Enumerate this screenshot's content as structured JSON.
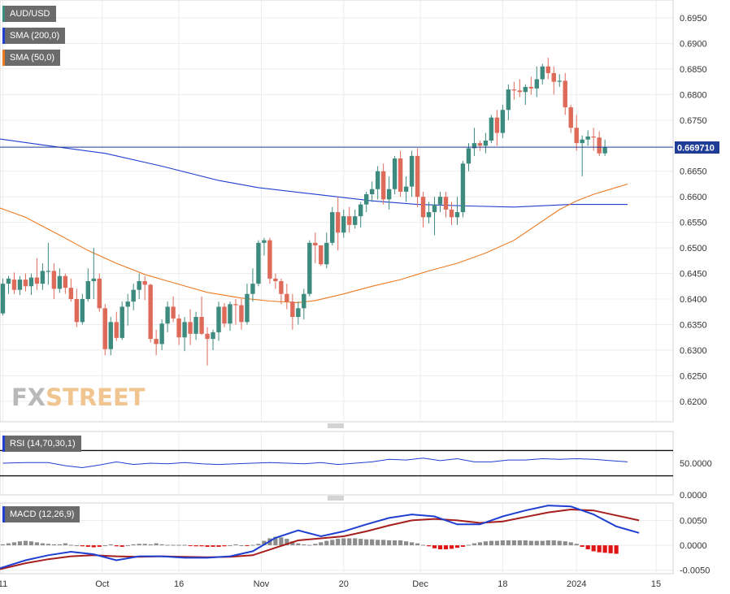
{
  "chart_data": [
    {
      "type": "candlestick",
      "title": "AUD/USD",
      "indicators": [
        {
          "name": "SMA (200,0)",
          "color": "#1f3fd0"
        },
        {
          "name": "SMA (50,0)",
          "color": "#ec7a22"
        }
      ],
      "current_price": "0.669710",
      "price_line": 0.6697,
      "y_ticks": [
        "0.6950",
        "0.6900",
        "0.6850",
        "0.6800",
        "0.6750",
        "0.6700",
        "0.6650",
        "0.6600",
        "0.6550",
        "0.6500",
        "0.6450",
        "0.6400",
        "0.6350",
        "0.6300",
        "0.6250",
        "0.6200"
      ],
      "ylim": [
        0.616,
        0.6985
      ],
      "x_ticks": [
        {
          "label": "11",
          "index": 0
        },
        {
          "label": "Oct",
          "index": 17.5
        },
        {
          "label": "16",
          "index": 31
        },
        {
          "label": "Nov",
          "index": 45.5
        },
        {
          "label": "20",
          "index": 60
        },
        {
          "label": "Dec",
          "index": 73.5
        },
        {
          "label": "18",
          "index": 88
        },
        {
          "label": "2024",
          "index": 101
        },
        {
          "label": "15",
          "index": 115
        }
      ],
      "x_range": [
        -0.5,
        118
      ],
      "bull_color": "#3d8a7e",
      "bear_color": "#de6a5a",
      "candles": [
        [
          0.6372,
          0.644,
          0.6368,
          0.643
        ],
        [
          0.643,
          0.6445,
          0.641,
          0.644
        ],
        [
          0.6438,
          0.6452,
          0.641,
          0.6418
        ],
        [
          0.6418,
          0.6445,
          0.6408,
          0.6438
        ],
        [
          0.6438,
          0.645,
          0.6415,
          0.6425
        ],
        [
          0.6425,
          0.645,
          0.6408,
          0.6442
        ],
        [
          0.6442,
          0.648,
          0.6418,
          0.643
        ],
        [
          0.643,
          0.647,
          0.6418,
          0.6455
        ],
        [
          0.6455,
          0.651,
          0.6428,
          0.6455
        ],
        [
          0.6455,
          0.647,
          0.64,
          0.642
        ],
        [
          0.642,
          0.646,
          0.6412,
          0.6445
        ],
        [
          0.6445,
          0.645,
          0.641,
          0.6422
        ],
        [
          0.6422,
          0.644,
          0.6395,
          0.64
        ],
        [
          0.64,
          0.642,
          0.6345,
          0.6355
        ],
        [
          0.6355,
          0.641,
          0.635,
          0.64
        ],
        [
          0.64,
          0.646,
          0.6395,
          0.6435
        ],
        [
          0.6435,
          0.65,
          0.64,
          0.644
        ],
        [
          0.644,
          0.645,
          0.6375,
          0.6382
        ],
        [
          0.6382,
          0.639,
          0.629,
          0.6302
        ],
        [
          0.6302,
          0.6365,
          0.629,
          0.6355
        ],
        [
          0.6355,
          0.6375,
          0.6318,
          0.6324
        ],
        [
          0.6324,
          0.6395,
          0.632,
          0.6385
        ],
        [
          0.6385,
          0.641,
          0.6348,
          0.6395
        ],
        [
          0.6395,
          0.643,
          0.6378,
          0.6418
        ],
        [
          0.6418,
          0.645,
          0.64,
          0.6435
        ],
        [
          0.6435,
          0.6445,
          0.6398,
          0.6428
        ],
        [
          0.6428,
          0.643,
          0.6315,
          0.6322
        ],
        [
          0.6322,
          0.634,
          0.629,
          0.6312
        ],
        [
          0.6312,
          0.636,
          0.63,
          0.6352
        ],
        [
          0.6352,
          0.6395,
          0.6335,
          0.6385
        ],
        [
          0.6385,
          0.6405,
          0.6355,
          0.6362
        ],
        [
          0.6362,
          0.637,
          0.631,
          0.6325
        ],
        [
          0.6325,
          0.6365,
          0.6298,
          0.6355
        ],
        [
          0.6355,
          0.638,
          0.631,
          0.6332
        ],
        [
          0.6332,
          0.6375,
          0.632,
          0.6365
        ],
        [
          0.6365,
          0.6405,
          0.633,
          0.6332
        ],
        [
          0.6332,
          0.6345,
          0.627,
          0.6322
        ],
        [
          0.6322,
          0.634,
          0.63,
          0.6335
        ],
        [
          0.6335,
          0.6395,
          0.6318,
          0.6385
        ],
        [
          0.6385,
          0.6392,
          0.6345,
          0.6352
        ],
        [
          0.6352,
          0.6395,
          0.6338,
          0.639
        ],
        [
          0.639,
          0.64,
          0.635,
          0.6388
        ],
        [
          0.6388,
          0.64,
          0.634,
          0.6355
        ],
        [
          0.6355,
          0.643,
          0.635,
          0.641
        ],
        [
          0.641,
          0.646,
          0.6395,
          0.643
        ],
        [
          0.643,
          0.6515,
          0.6425,
          0.651
        ],
        [
          0.651,
          0.652,
          0.6485,
          0.6515
        ],
        [
          0.6515,
          0.652,
          0.643,
          0.644
        ],
        [
          0.644,
          0.645,
          0.642,
          0.6435
        ],
        [
          0.6435,
          0.644,
          0.639,
          0.641
        ],
        [
          0.641,
          0.643,
          0.638,
          0.6395
        ],
        [
          0.6395,
          0.641,
          0.634,
          0.6365
        ],
        [
          0.6365,
          0.6395,
          0.635,
          0.6382
        ],
        [
          0.6382,
          0.642,
          0.636,
          0.641
        ],
        [
          0.641,
          0.6515,
          0.6405,
          0.651
        ],
        [
          0.651,
          0.653,
          0.647,
          0.6505
        ],
        [
          0.6505,
          0.6505,
          0.6465,
          0.6468
        ],
        [
          0.6468,
          0.653,
          0.646,
          0.651
        ],
        [
          0.651,
          0.658,
          0.6505,
          0.657
        ],
        [
          0.657,
          0.66,
          0.6495,
          0.653
        ],
        [
          0.653,
          0.6575,
          0.652,
          0.6562
        ],
        [
          0.6562,
          0.658,
          0.653,
          0.6545
        ],
        [
          0.6545,
          0.6575,
          0.6538,
          0.6562
        ],
        [
          0.6562,
          0.659,
          0.654,
          0.6585
        ],
        [
          0.6585,
          0.661,
          0.657,
          0.6605
        ],
        [
          0.6605,
          0.663,
          0.659,
          0.6615
        ],
        [
          0.6615,
          0.666,
          0.6595,
          0.665
        ],
        [
          0.665,
          0.6665,
          0.6585,
          0.6595
        ],
        [
          0.6595,
          0.664,
          0.6575,
          0.6615
        ],
        [
          0.6615,
          0.668,
          0.6605,
          0.6675
        ],
        [
          0.6675,
          0.669,
          0.66,
          0.661
        ],
        [
          0.661,
          0.664,
          0.659,
          0.662
        ],
        [
          0.662,
          0.669,
          0.66,
          0.668
        ],
        [
          0.668,
          0.6695,
          0.658,
          0.66
        ],
        [
          0.66,
          0.661,
          0.654,
          0.656
        ],
        [
          0.656,
          0.659,
          0.6548,
          0.657
        ],
        [
          0.657,
          0.66,
          0.6525,
          0.6585
        ],
        [
          0.6585,
          0.661,
          0.657,
          0.66
        ],
        [
          0.66,
          0.661,
          0.656,
          0.6575
        ],
        [
          0.6575,
          0.659,
          0.6545,
          0.656
        ],
        [
          0.656,
          0.66,
          0.6545,
          0.657
        ],
        [
          0.657,
          0.667,
          0.656,
          0.6665
        ],
        [
          0.6665,
          0.6705,
          0.665,
          0.6695
        ],
        [
          0.6695,
          0.6735,
          0.668,
          0.6705
        ],
        [
          0.6705,
          0.671,
          0.669,
          0.67
        ],
        [
          0.67,
          0.6725,
          0.6685,
          0.671
        ],
        [
          0.671,
          0.676,
          0.6705,
          0.6755
        ],
        [
          0.6755,
          0.677,
          0.67,
          0.6725
        ],
        [
          0.6725,
          0.678,
          0.6715,
          0.677
        ],
        [
          0.677,
          0.682,
          0.675,
          0.681
        ],
        [
          0.681,
          0.6825,
          0.679,
          0.6808
        ],
        [
          0.6808,
          0.683,
          0.6795,
          0.6805
        ],
        [
          0.6805,
          0.682,
          0.678,
          0.6815
        ],
        [
          0.6815,
          0.6835,
          0.68,
          0.6812
        ],
        [
          0.6812,
          0.6855,
          0.6795,
          0.683
        ],
        [
          0.683,
          0.686,
          0.682,
          0.6855
        ],
        [
          0.6855,
          0.6872,
          0.683,
          0.6842
        ],
        [
          0.6842,
          0.6855,
          0.68,
          0.6825
        ],
        [
          0.6825,
          0.684,
          0.6815,
          0.6827
        ],
        [
          0.6827,
          0.6842,
          0.676,
          0.6775
        ],
        [
          0.6775,
          0.678,
          0.6725,
          0.6735
        ],
        [
          0.6735,
          0.676,
          0.669,
          0.6705
        ],
        [
          0.6705,
          0.672,
          0.664,
          0.6712
        ],
        [
          0.6712,
          0.673,
          0.67,
          0.6718
        ],
        [
          0.6718,
          0.6735,
          0.669,
          0.6716
        ],
        [
          0.6716,
          0.6728,
          0.668,
          0.6685
        ],
        [
          0.6685,
          0.6712,
          0.668,
          0.6697
        ]
      ],
      "sma200": [
        [
          -0.5,
          0.6713
        ],
        [
          8,
          0.67
        ],
        [
          18,
          0.6685
        ],
        [
          28,
          0.666
        ],
        [
          38,
          0.6632
        ],
        [
          45,
          0.6618
        ],
        [
          55,
          0.6605
        ],
        [
          65,
          0.6592
        ],
        [
          73,
          0.6585
        ],
        [
          82,
          0.6582
        ],
        [
          90,
          0.658
        ],
        [
          100,
          0.6585
        ],
        [
          110,
          0.6585
        ]
      ],
      "sma50": [
        [
          -0.5,
          0.6578
        ],
        [
          4,
          0.656
        ],
        [
          10,
          0.6525
        ],
        [
          15,
          0.6495
        ],
        [
          20,
          0.647
        ],
        [
          25,
          0.6448
        ],
        [
          30,
          0.6432
        ],
        [
          36,
          0.6413
        ],
        [
          42,
          0.6402
        ],
        [
          47,
          0.6396
        ],
        [
          52,
          0.6393
        ],
        [
          55,
          0.6397
        ],
        [
          60,
          0.641
        ],
        [
          65,
          0.6425
        ],
        [
          70,
          0.6438
        ],
        [
          75,
          0.6455
        ],
        [
          80,
          0.647
        ],
        [
          85,
          0.649
        ],
        [
          90,
          0.6515
        ],
        [
          94,
          0.6545
        ],
        [
          98,
          0.6575
        ],
        [
          101,
          0.6592
        ],
        [
          104,
          0.6605
        ],
        [
          107,
          0.6615
        ],
        [
          110,
          0.6625
        ]
      ]
    },
    {
      "type": "line",
      "title": "RSI (14,70,30,1)",
      "y_ticks": [
        "50.0000",
        "0.0000"
      ],
      "ylim": [
        0,
        100
      ],
      "levels": [
        70,
        30
      ],
      "color": "#1f3fd0",
      "x": [
        0,
        4,
        8,
        11,
        14,
        17,
        20,
        23,
        26,
        29,
        32,
        35,
        38,
        41,
        44,
        47,
        50,
        53,
        56,
        59,
        62,
        65,
        68,
        71,
        74,
        77,
        80,
        83,
        86,
        89,
        92,
        95,
        98,
        101,
        104,
        107,
        110
      ],
      "values": [
        50,
        51,
        51,
        46,
        43,
        47,
        52,
        48,
        50,
        49,
        51,
        49,
        48,
        49,
        50,
        51,
        50,
        49,
        51,
        48,
        50,
        52,
        56,
        55,
        58,
        54,
        57,
        52,
        52,
        55,
        55,
        57,
        56,
        57,
        56,
        54,
        52
      ]
    },
    {
      "type": "line",
      "title": "MACD (12,26,9)",
      "y_ticks": [
        "0.0050",
        "0.0000",
        "-0.0050"
      ],
      "ylim": [
        -0.0057,
        0.0085
      ],
      "macd_color": "#1f3fd0",
      "signal_color": "#a61e1e",
      "x": [
        -0.5,
        4,
        8,
        12,
        16,
        20,
        24,
        28,
        32,
        36,
        40,
        44,
        48,
        52,
        56,
        60,
        64,
        68,
        72,
        76,
        80,
        84,
        88,
        92,
        96,
        100,
        104,
        108,
        112
      ],
      "macd": [
        -0.0046,
        -0.003,
        -0.002,
        -0.0013,
        -0.0018,
        -0.003,
        -0.0022,
        -0.0022,
        -0.0025,
        -0.0025,
        -0.0022,
        -0.0012,
        0.0015,
        0.003,
        0.0018,
        0.0028,
        0.0042,
        0.0055,
        0.0062,
        0.0058,
        0.0042,
        0.0042,
        0.0058,
        0.007,
        0.008,
        0.0078,
        0.0062,
        0.0038,
        0.0025
      ],
      "signal": [
        -0.0048,
        -0.0036,
        -0.0028,
        -0.0022,
        -0.002,
        -0.0022,
        -0.0023,
        -0.0022,
        -0.0023,
        -0.0024,
        -0.0023,
        -0.002,
        -0.0005,
        0.001,
        0.0014,
        0.0018,
        0.0028,
        0.004,
        0.005,
        0.0053,
        0.005,
        0.0045,
        0.0048,
        0.0057,
        0.0066,
        0.0072,
        0.007,
        0.006,
        0.005
      ],
      "histogram_colors": {
        "positive": "#8c8c8c",
        "negative": "#e01414"
      },
      "histogram": [
        0.0002,
        0.0004,
        0.0006,
        0.0008,
        0.0009,
        0.0008,
        0.0006,
        0.0004,
        0.0003,
        0.0002,
        0.0002,
        0.0004,
        0.0001,
        0.0,
        -0.0002,
        -0.0003,
        -0.0004,
        -0.0003,
        0.0,
        0.0002,
        -0.0002,
        -0.0003,
        0.0,
        0.0002,
        0.0003,
        0.0003,
        0.0002,
        0.0004,
        0.0002,
        0.0001,
        0.0001,
        0.0001,
        0.0001,
        -0.0001,
        -0.0002,
        -0.0002,
        -0.0003,
        -0.0003,
        -0.0003,
        -0.0002,
        0.0,
        0.0002,
        0.0,
        -0.0001,
        0.0001,
        0.0003,
        0.0009,
        0.0014,
        0.0017,
        0.0016,
        0.0013,
        0.0008,
        0.0004,
        0.0002,
        0.0001,
        0.0003,
        0.0006,
        0.0009,
        0.0011,
        0.0013,
        0.0014,
        0.0014,
        0.0014,
        0.0013,
        0.0012,
        0.0012,
        0.0011,
        0.0011,
        0.001,
        0.001,
        0.001,
        0.0008,
        0.0006,
        0.0004,
        0.0001,
        -0.0002,
        -0.0006,
        -0.0008,
        -0.0008,
        -0.0007,
        -0.0005,
        -0.0003,
        0.0001,
        0.0004,
        0.0006,
        0.0008,
        0.0009,
        0.0009,
        0.001,
        0.001,
        0.001,
        0.001,
        0.001,
        0.0009,
        0.0009,
        0.0009,
        0.001,
        0.001,
        0.0009,
        0.0008,
        0.0006,
        0.0003,
        -0.0003,
        -0.0008,
        -0.0012,
        -0.0014,
        -0.0015,
        -0.0016,
        -0.0017
      ]
    }
  ],
  "logo_text": "FXSTREET"
}
